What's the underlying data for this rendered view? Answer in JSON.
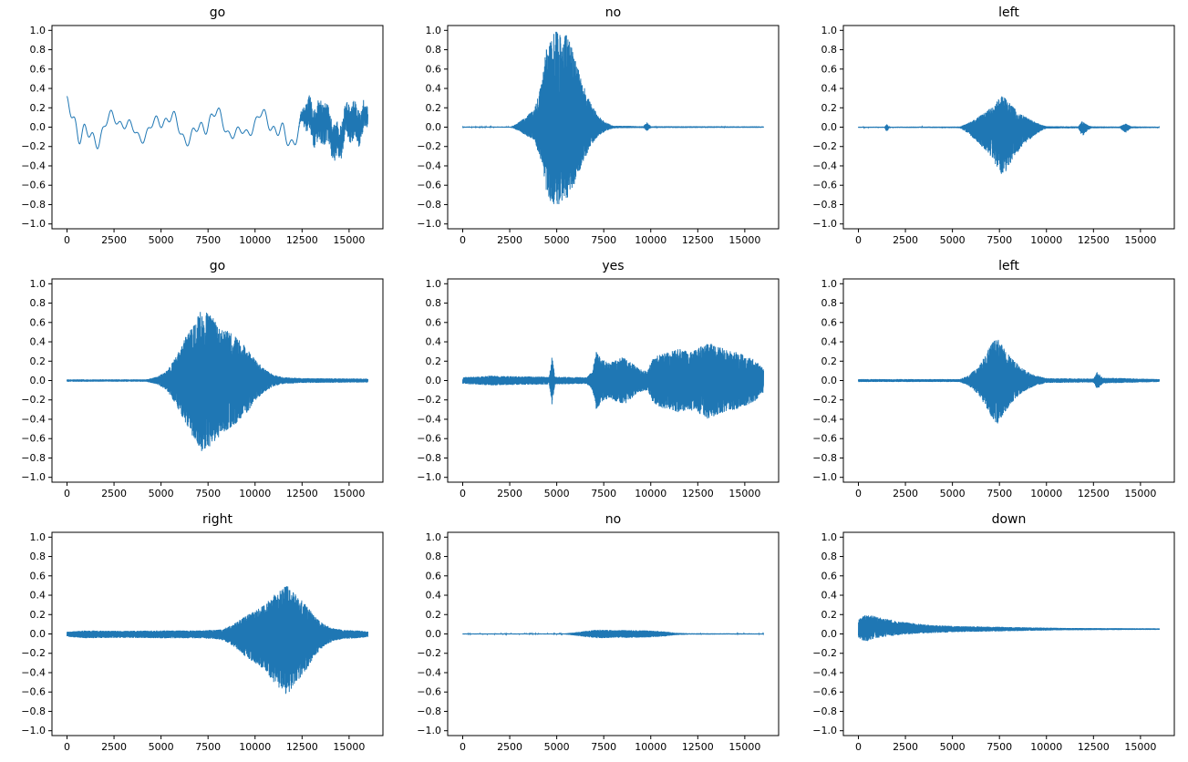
{
  "figure": {
    "background": "#ffffff",
    "rows": 3,
    "cols": 3,
    "line_color": "#1f77b4",
    "kind": "audio waveform grid"
  },
  "axes_common": {
    "xlim": [
      -800,
      16800
    ],
    "ylim": [
      -1.05,
      1.05
    ],
    "x_ticks": [
      0,
      2500,
      5000,
      7500,
      10000,
      12500,
      15000
    ],
    "x_tick_labels": [
      "0",
      "2500",
      "5000",
      "7500",
      "10000",
      "12500",
      "15000"
    ],
    "y_ticks": [
      1.0,
      0.8,
      0.6,
      0.4,
      0.2,
      0.0,
      -0.2,
      -0.4,
      -0.6,
      -0.8,
      -1.0
    ],
    "y_tick_labels": [
      "1.0",
      "0.8",
      "0.6",
      "0.4",
      "0.2",
      "0.0",
      "−0.2",
      "−0.4",
      "−0.6",
      "−0.8",
      "−1.0"
    ],
    "grid": false,
    "legend": "none",
    "xlabel": "",
    "ylabel": ""
  },
  "chart_data": [
    {
      "type": "line",
      "title": "go",
      "seed": 11,
      "description": "smooth low-frequency wandering waveform around 0, amplitude about ±0.3, dense noise after 12500",
      "waveform": {
        "kind": "smooth",
        "envelope": [
          [
            0,
            0.32
          ],
          [
            600,
            0.38
          ],
          [
            1200,
            0.28
          ],
          [
            2500,
            0.18
          ],
          [
            4000,
            0.16
          ],
          [
            5500,
            0.22
          ],
          [
            6500,
            0.2
          ],
          [
            7500,
            0.26
          ],
          [
            8500,
            0.18
          ],
          [
            9500,
            0.14
          ],
          [
            10800,
            0.22
          ],
          [
            11500,
            0.3
          ],
          [
            12500,
            0.22
          ],
          [
            16000,
            0.2
          ]
        ],
        "dense_envelope": [
          [
            0,
            0
          ],
          [
            12300,
            0
          ],
          [
            12800,
            0.18
          ],
          [
            13500,
            0.22
          ],
          [
            14500,
            0.18
          ],
          [
            15500,
            0.2
          ],
          [
            16000,
            0.12
          ]
        ]
      }
    },
    {
      "type": "line",
      "title": "no",
      "seed": 22,
      "description": "silence then large burst centered near 5000 reaching +1.0 / −0.8, decays by 7500, tiny blip near 9800",
      "waveform": {
        "kind": "dense",
        "neg_scale": 0.8,
        "envelope": [
          [
            0,
            0.006
          ],
          [
            2600,
            0.006
          ],
          [
            2900,
            0.04
          ],
          [
            3300,
            0.1
          ],
          [
            3800,
            0.18
          ],
          [
            4200,
            0.45
          ],
          [
            4500,
            0.9
          ],
          [
            4800,
            1.0
          ],
          [
            5200,
            1.0
          ],
          [
            5600,
            0.95
          ],
          [
            6000,
            0.7
          ],
          [
            6400,
            0.45
          ],
          [
            6800,
            0.25
          ],
          [
            7200,
            0.12
          ],
          [
            7600,
            0.05
          ],
          [
            8000,
            0.015
          ],
          [
            9600,
            0.01
          ],
          [
            9800,
            0.05
          ],
          [
            10000,
            0.01
          ],
          [
            16000,
            0.008
          ]
        ]
      }
    },
    {
      "type": "line",
      "title": "left",
      "seed": 33,
      "description": "flat with small blip near 1500, burst 5800–9500 centered 7600 reaching about +0.33 / −0.5, small blips near 12000 and 14200",
      "waveform": {
        "kind": "dense",
        "pos_scale": 0.65,
        "envelope": [
          [
            0,
            0.007
          ],
          [
            1400,
            0.007
          ],
          [
            1500,
            0.05
          ],
          [
            1650,
            0.007
          ],
          [
            5400,
            0.01
          ],
          [
            5800,
            0.06
          ],
          [
            6300,
            0.15
          ],
          [
            6800,
            0.25
          ],
          [
            7200,
            0.35
          ],
          [
            7600,
            0.5
          ],
          [
            7900,
            0.45
          ],
          [
            8300,
            0.3
          ],
          [
            8800,
            0.18
          ],
          [
            9300,
            0.1
          ],
          [
            9700,
            0.04
          ],
          [
            10000,
            0.015
          ],
          [
            11700,
            0.012
          ],
          [
            11900,
            0.1
          ],
          [
            12200,
            0.03
          ],
          [
            12400,
            0.012
          ],
          [
            13900,
            0.01
          ],
          [
            14200,
            0.06
          ],
          [
            14500,
            0.012
          ],
          [
            16000,
            0.008
          ]
        ]
      }
    },
    {
      "type": "line",
      "title": "go",
      "seed": 44,
      "description": "silence until 4500, symmetric burst centered 7300 reaching about ±0.75, decays by 11000",
      "waveform": {
        "kind": "dense",
        "envelope": [
          [
            0,
            0.012
          ],
          [
            4200,
            0.012
          ],
          [
            4800,
            0.04
          ],
          [
            5300,
            0.1
          ],
          [
            5800,
            0.25
          ],
          [
            6300,
            0.45
          ],
          [
            6800,
            0.62
          ],
          [
            7200,
            0.75
          ],
          [
            7600,
            0.68
          ],
          [
            8000,
            0.6
          ],
          [
            8500,
            0.52
          ],
          [
            9000,
            0.45
          ],
          [
            9500,
            0.35
          ],
          [
            10000,
            0.22
          ],
          [
            10500,
            0.12
          ],
          [
            11000,
            0.06
          ],
          [
            11500,
            0.035
          ],
          [
            12500,
            0.025
          ],
          [
            16000,
            0.02
          ]
        ]
      }
    },
    {
      "type": "line",
      "title": "yes",
      "seed": 55,
      "description": "small ripple start, narrow spike near 4800 (±0.25), medium burst 7000–9500, larger burst 10000–16000 up to ±0.4",
      "waveform": {
        "kind": "dense",
        "envelope": [
          [
            0,
            0.035
          ],
          [
            1500,
            0.05
          ],
          [
            3000,
            0.045
          ],
          [
            4600,
            0.04
          ],
          [
            4750,
            0.26
          ],
          [
            4900,
            0.04
          ],
          [
            6600,
            0.035
          ],
          [
            6900,
            0.1
          ],
          [
            7100,
            0.3
          ],
          [
            7400,
            0.22
          ],
          [
            7800,
            0.18
          ],
          [
            8200,
            0.22
          ],
          [
            8600,
            0.25
          ],
          [
            9000,
            0.18
          ],
          [
            9400,
            0.12
          ],
          [
            9800,
            0.1
          ],
          [
            10100,
            0.22
          ],
          [
            10500,
            0.28
          ],
          [
            11000,
            0.3
          ],
          [
            11500,
            0.33
          ],
          [
            12000,
            0.3
          ],
          [
            12500,
            0.33
          ],
          [
            13000,
            0.4
          ],
          [
            13500,
            0.36
          ],
          [
            14000,
            0.32
          ],
          [
            14500,
            0.3
          ],
          [
            15000,
            0.27
          ],
          [
            15500,
            0.22
          ],
          [
            16000,
            0.12
          ]
        ]
      }
    },
    {
      "type": "line",
      "title": "left",
      "seed": 66,
      "description": "flat, burst 5900–9500 centered 7400 reaching about ±0.45, small blip near 12700",
      "waveform": {
        "kind": "dense",
        "envelope": [
          [
            0,
            0.015
          ],
          [
            5400,
            0.015
          ],
          [
            5900,
            0.06
          ],
          [
            6400,
            0.15
          ],
          [
            6800,
            0.28
          ],
          [
            7100,
            0.4
          ],
          [
            7400,
            0.45
          ],
          [
            7700,
            0.35
          ],
          [
            8100,
            0.25
          ],
          [
            8500,
            0.16
          ],
          [
            9000,
            0.09
          ],
          [
            9500,
            0.05
          ],
          [
            10000,
            0.025
          ],
          [
            12500,
            0.02
          ],
          [
            12700,
            0.09
          ],
          [
            13000,
            0.03
          ],
          [
            16000,
            0.015
          ]
        ]
      }
    },
    {
      "type": "line",
      "title": "right",
      "seed": 77,
      "description": "low noise throughout, burst 8700–14000 centered 11700 reaching about +0.5 / −0.65",
      "waveform": {
        "kind": "dense",
        "pos_scale": 0.8,
        "envelope": [
          [
            0,
            0.03
          ],
          [
            1000,
            0.045
          ],
          [
            3000,
            0.04
          ],
          [
            5000,
            0.045
          ],
          [
            7000,
            0.045
          ],
          [
            8200,
            0.06
          ],
          [
            8800,
            0.12
          ],
          [
            9400,
            0.22
          ],
          [
            10000,
            0.3
          ],
          [
            10600,
            0.4
          ],
          [
            11200,
            0.55
          ],
          [
            11700,
            0.65
          ],
          [
            12200,
            0.5
          ],
          [
            12700,
            0.38
          ],
          [
            13200,
            0.22
          ],
          [
            13700,
            0.12
          ],
          [
            14200,
            0.07
          ],
          [
            14800,
            0.05
          ],
          [
            15500,
            0.045
          ],
          [
            16000,
            0.03
          ]
        ]
      }
    },
    {
      "type": "line",
      "title": "no",
      "seed": 88,
      "description": "nearly flat line with very small activity (~±0.05) between 6000 and 11000",
      "waveform": {
        "kind": "dense",
        "envelope": [
          [
            0,
            0.005
          ],
          [
            5400,
            0.005
          ],
          [
            5900,
            0.015
          ],
          [
            6500,
            0.03
          ],
          [
            7200,
            0.045
          ],
          [
            8000,
            0.04
          ],
          [
            9000,
            0.04
          ],
          [
            10000,
            0.035
          ],
          [
            10800,
            0.025
          ],
          [
            11300,
            0.012
          ],
          [
            12000,
            0.007
          ],
          [
            16000,
            0.005
          ]
        ]
      }
    },
    {
      "type": "line",
      "title": "down",
      "seed": 99,
      "description": "thin line offset near +0.05 with noisy start (0–2000, amplitude ~0.15) tapering to near-flat",
      "waveform": {
        "kind": "dense",
        "offset_env": [
          [
            0,
            0.05
          ],
          [
            800,
            0.07
          ],
          [
            2000,
            0.06
          ],
          [
            4000,
            0.05
          ],
          [
            16000,
            0.05
          ]
        ],
        "envelope": [
          [
            0,
            0.1
          ],
          [
            400,
            0.14
          ],
          [
            800,
            0.12
          ],
          [
            1200,
            0.1
          ],
          [
            1600,
            0.09
          ],
          [
            2200,
            0.07
          ],
          [
            3000,
            0.055
          ],
          [
            4000,
            0.04
          ],
          [
            5500,
            0.03
          ],
          [
            7000,
            0.025
          ],
          [
            9000,
            0.018
          ],
          [
            11000,
            0.012
          ],
          [
            13000,
            0.01
          ],
          [
            16000,
            0.008
          ]
        ]
      }
    }
  ]
}
